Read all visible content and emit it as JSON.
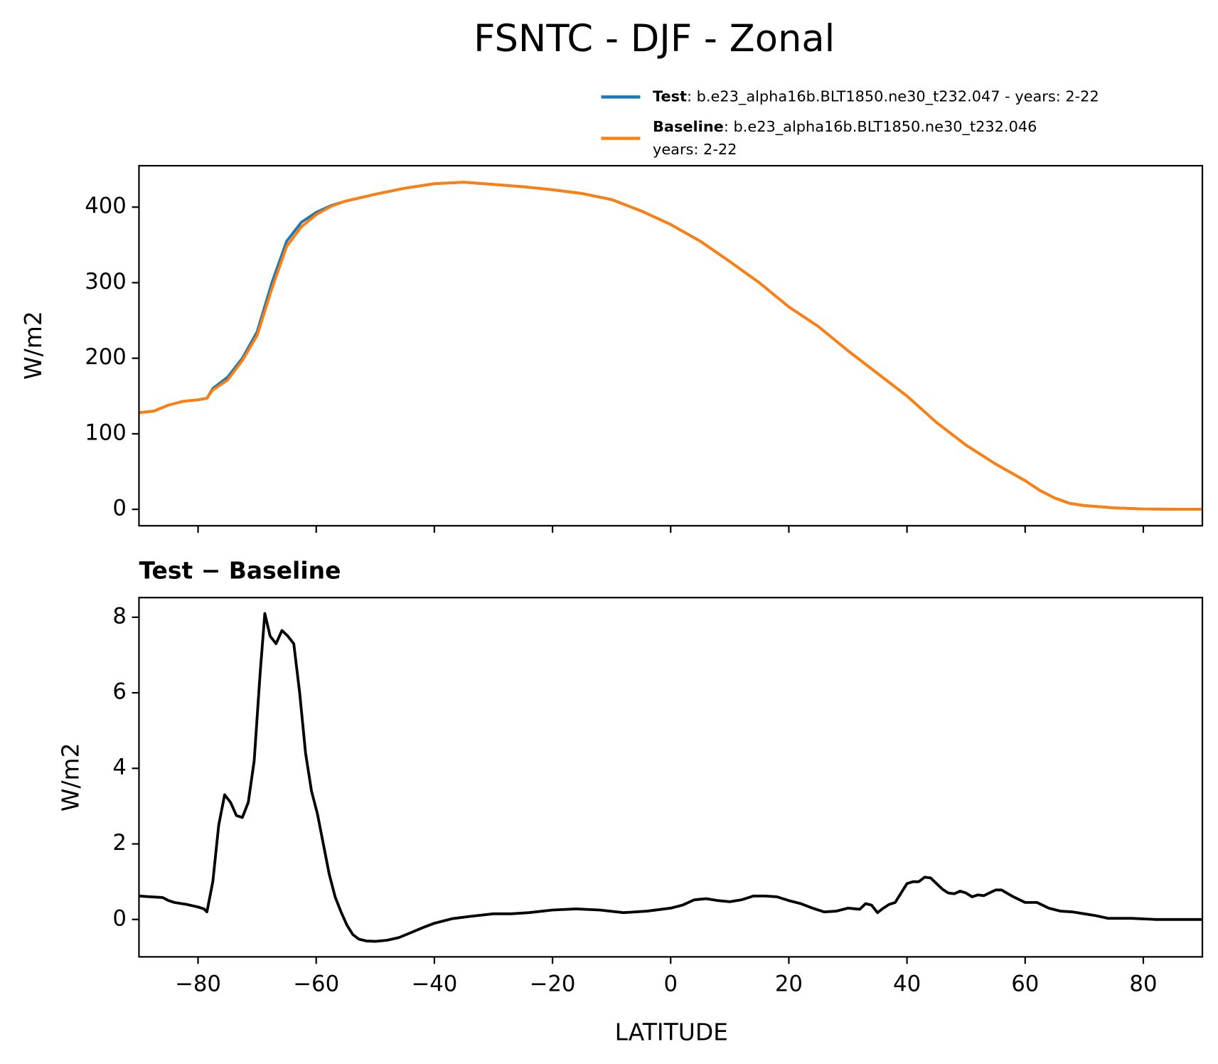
{
  "chart_data": [
    {
      "type": "line",
      "title": "FSNTC - DJF - Zonal",
      "ylabel": "W/m2",
      "xlim": [
        -90,
        90
      ],
      "ylim": [
        -21.7,
        454.8
      ],
      "xticks": [
        -80,
        -60,
        -40,
        -20,
        0,
        20,
        40,
        60,
        80
      ],
      "xticklabels": false,
      "yticks": [
        0,
        100,
        200,
        300,
        400
      ],
      "grid": false,
      "legend": "upper right",
      "x": [
        -90,
        -87.5,
        -85,
        -82.5,
        -80,
        -78.5,
        -77.5,
        -75,
        -72.5,
        -70,
        -67.5,
        -65,
        -62.5,
        -60,
        -57.5,
        -55,
        -50,
        -45,
        -40,
        -35,
        -30,
        -25,
        -20,
        -15,
        -10,
        -5,
        0,
        5,
        10,
        15,
        20,
        25,
        30,
        35,
        40,
        45,
        50,
        55,
        60,
        62.5,
        65,
        67.5,
        70,
        75,
        80,
        85,
        90
      ],
      "series": [
        {
          "name": "Test",
          "label": ": b.e23_alpha16b.BLT1850.ne30_t232.047 - years: 2-22",
          "color": "#1f77b4",
          "values": [
            128,
            130,
            138,
            143,
            145,
            147,
            160,
            175,
            200,
            235,
            300,
            355,
            380,
            393,
            402,
            408,
            417,
            425,
            431,
            433,
            430,
            427,
            423,
            418,
            410,
            395,
            377,
            355,
            328,
            300,
            268,
            242,
            210,
            180,
            150,
            115,
            85,
            60,
            38,
            25,
            15,
            8,
            5,
            2,
            0.5,
            0.2,
            0.2
          ]
        },
        {
          "name": "Baseline",
          "label_lines": [
            ": b.e23_alpha16b.BLT1850.ne30_t232.046",
            "years: 2-22"
          ],
          "color": "#ff7f0e",
          "values": [
            128,
            130,
            138,
            143,
            145,
            147,
            158,
            171,
            197,
            230,
            292,
            348,
            374,
            390,
            401,
            408,
            417,
            425,
            431,
            433,
            430,
            427,
            423,
            418,
            410,
            395,
            377,
            355,
            328,
            300,
            268,
            242,
            210,
            180,
            150,
            115,
            85,
            60,
            38,
            25,
            15,
            8,
            5,
            2,
            0.5,
            0.2,
            0.2
          ]
        }
      ]
    },
    {
      "type": "line",
      "title": "Test − Baseline",
      "ylabel": "W/m2",
      "xlabel": "LATITUDE",
      "xlim": [
        -90,
        90
      ],
      "ylim": [
        -0.99,
        8.52
      ],
      "xticks": [
        {
          "value": -80,
          "label": "−80"
        },
        {
          "value": -60,
          "label": "−60"
        },
        {
          "value": -40,
          "label": "−40"
        },
        {
          "value": -20,
          "label": "−20"
        },
        0,
        20,
        40,
        60,
        80
      ],
      "yticks": [
        0,
        2,
        4,
        6,
        8
      ],
      "grid": false,
      "x": [
        -90,
        -88,
        -86,
        -85,
        -84,
        -82,
        -80,
        -79,
        -78.5,
        -77.5,
        -76.5,
        -75.5,
        -74.5,
        -73.5,
        -72.5,
        -71.5,
        -70.5,
        -69.5,
        -68.7,
        -67.8,
        -66.8,
        -65.8,
        -64.8,
        -63.8,
        -62.8,
        -61.8,
        -60.8,
        -59.8,
        -58.8,
        -57.8,
        -56.8,
        -55.8,
        -54.8,
        -53.8,
        -52.8,
        -51.5,
        -50,
        -48,
        -46,
        -44,
        -42,
        -40,
        -37,
        -34,
        -30,
        -27,
        -24,
        -20,
        -16,
        -12,
        -8,
        -4,
        0,
        2,
        4,
        6,
        8,
        10,
        12,
        14,
        16,
        18,
        20,
        22,
        24,
        26,
        28,
        30,
        32,
        33,
        34,
        35,
        36,
        37,
        38,
        39,
        40,
        41,
        42,
        43,
        44,
        45,
        46,
        47,
        48,
        49,
        50,
        51,
        52,
        53,
        55,
        56,
        58,
        60,
        62,
        64,
        66,
        68,
        70,
        72,
        74,
        78,
        82,
        86,
        90
      ],
      "series": [
        {
          "name": null,
          "color": "#000000",
          "values": [
            0.62,
            0.6,
            0.58,
            0.5,
            0.45,
            0.4,
            0.33,
            0.28,
            0.2,
            1.0,
            2.5,
            3.3,
            3.1,
            2.75,
            2.7,
            3.1,
            4.2,
            6.5,
            8.1,
            7.5,
            7.3,
            7.65,
            7.5,
            7.3,
            6.0,
            4.4,
            3.4,
            2.8,
            2.0,
            1.2,
            0.6,
            0.2,
            -0.15,
            -0.4,
            -0.52,
            -0.57,
            -0.58,
            -0.55,
            -0.48,
            -0.35,
            -0.22,
            -0.1,
            0.02,
            0.08,
            0.15,
            0.15,
            0.18,
            0.25,
            0.28,
            0.25,
            0.18,
            0.22,
            0.3,
            0.38,
            0.52,
            0.55,
            0.5,
            0.47,
            0.52,
            0.62,
            0.62,
            0.6,
            0.5,
            0.42,
            0.3,
            0.2,
            0.22,
            0.3,
            0.27,
            0.42,
            0.38,
            0.18,
            0.3,
            0.4,
            0.45,
            0.7,
            0.95,
            1.0,
            1.0,
            1.12,
            1.1,
            0.95,
            0.8,
            0.7,
            0.68,
            0.75,
            0.7,
            0.6,
            0.65,
            0.63,
            0.78,
            0.78,
            0.6,
            0.45,
            0.45,
            0.3,
            0.22,
            0.2,
            0.15,
            0.1,
            0.03,
            0.03,
            0,
            0,
            0
          ]
        }
      ]
    }
  ]
}
